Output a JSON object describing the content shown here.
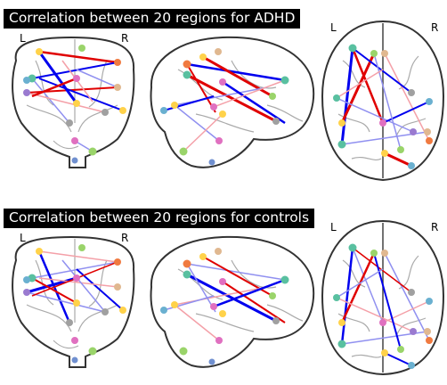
{
  "panels": [
    {
      "title": "Correlation between 20 regions for ADHD",
      "views": {
        "coronal": {
          "left": "L",
          "right": "R"
        },
        "axial": {
          "left": "L",
          "right": "R"
        }
      }
    },
    {
      "title": "Correlation between 20 regions for controls",
      "views": {
        "coronal": {
          "left": "L",
          "right": "R"
        },
        "axial": {
          "left": "L",
          "right": "R"
        }
      }
    }
  ],
  "colors": {
    "positive_strong": "#e00000",
    "positive_weak": "#f4a0a8",
    "negative_strong": "#0000ee",
    "negative_weak": "#9090f0",
    "brain_outline": "#333333",
    "sulci": "#a8a8a8"
  }
}
